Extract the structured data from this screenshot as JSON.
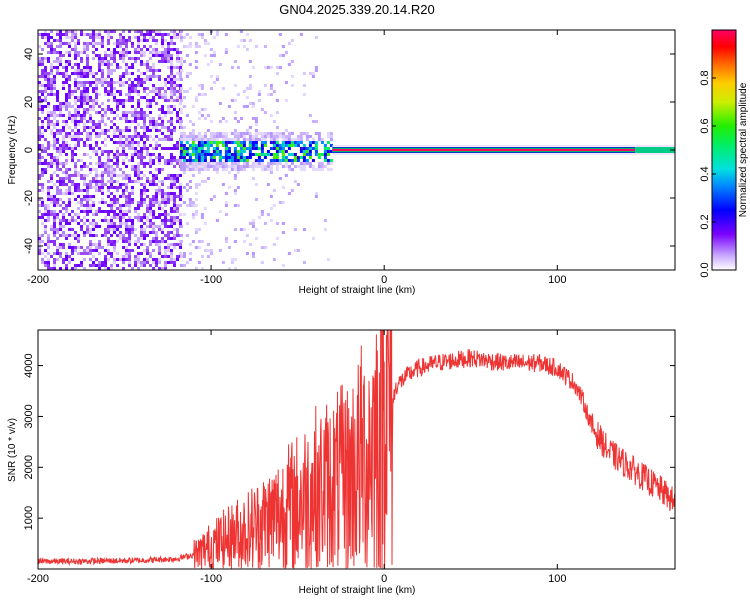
{
  "title": "GN04.2025.339.20.14.R20",
  "chart_data": [
    {
      "type": "heatmap",
      "name": "spectrogram",
      "xlabel": "Height of straight line (km)",
      "ylabel": "Frequency (Hz)",
      "xlim": [
        -200,
        168
      ],
      "ylim": [
        -50,
        50
      ],
      "xticks": [
        -200,
        -100,
        0,
        100
      ],
      "xtick_labels": [
        "-200",
        "-100",
        "0",
        "100"
      ],
      "yticks": [
        -40,
        -20,
        0,
        20,
        40
      ],
      "ytick_labels": [
        "-40",
        "-20",
        "0",
        "20",
        "40"
      ],
      "colorbar": {
        "label": "Normalized spectral amplitude",
        "range": [
          0,
          1
        ],
        "ticks": [
          0,
          0.2,
          0.4,
          0.6,
          0.8
        ],
        "tick_labels": [
          "0.0",
          "0.2",
          "0.4",
          "0.6",
          "0.8"
        ]
      },
      "features": {
        "noise_region_x": [
          -200,
          -118
        ],
        "transition_region_x": [
          -118,
          -30
        ],
        "carrier_line_freq_hz": 0,
        "carrier_line_x": [
          -30,
          145
        ]
      }
    },
    {
      "type": "line",
      "name": "snr",
      "xlabel": "Height of straight line (km)",
      "ylabel": "SNR (10 * v/v)",
      "xlim": [
        -200,
        168
      ],
      "ylim": [
        0,
        4700
      ],
      "xticks": [
        -200,
        -100,
        0,
        100
      ],
      "xtick_labels": [
        "-200",
        "-100",
        "0",
        "100"
      ],
      "yticks": [
        1000,
        2000,
        3000,
        4000
      ],
      "ytick_labels": [
        "1000",
        "2000",
        "3000",
        "4000"
      ],
      "color": "#ee3333",
      "series": [
        {
          "name": "SNR",
          "x": [
            -200,
            -180,
            -160,
            -140,
            -120,
            -110,
            -100,
            -90,
            -80,
            -70,
            -60,
            -50,
            -40,
            -30,
            -20,
            -15,
            -10,
            -5,
            0,
            5,
            7,
            10,
            15,
            20,
            30,
            40,
            50,
            60,
            70,
            80,
            90,
            100,
            110,
            115,
            120,
            130,
            140,
            150,
            160,
            168
          ],
          "y": [
            150,
            150,
            160,
            170,
            200,
            280,
            450,
            600,
            750,
            900,
            1100,
            1300,
            1550,
            1650,
            1800,
            2050,
            2300,
            2600,
            3100,
            3300,
            3600,
            3700,
            3850,
            3950,
            4050,
            4100,
            4150,
            4100,
            4050,
            4050,
            4050,
            3950,
            3650,
            3300,
            2800,
            2300,
            2050,
            1800,
            1550,
            1300
          ]
        }
      ]
    }
  ]
}
